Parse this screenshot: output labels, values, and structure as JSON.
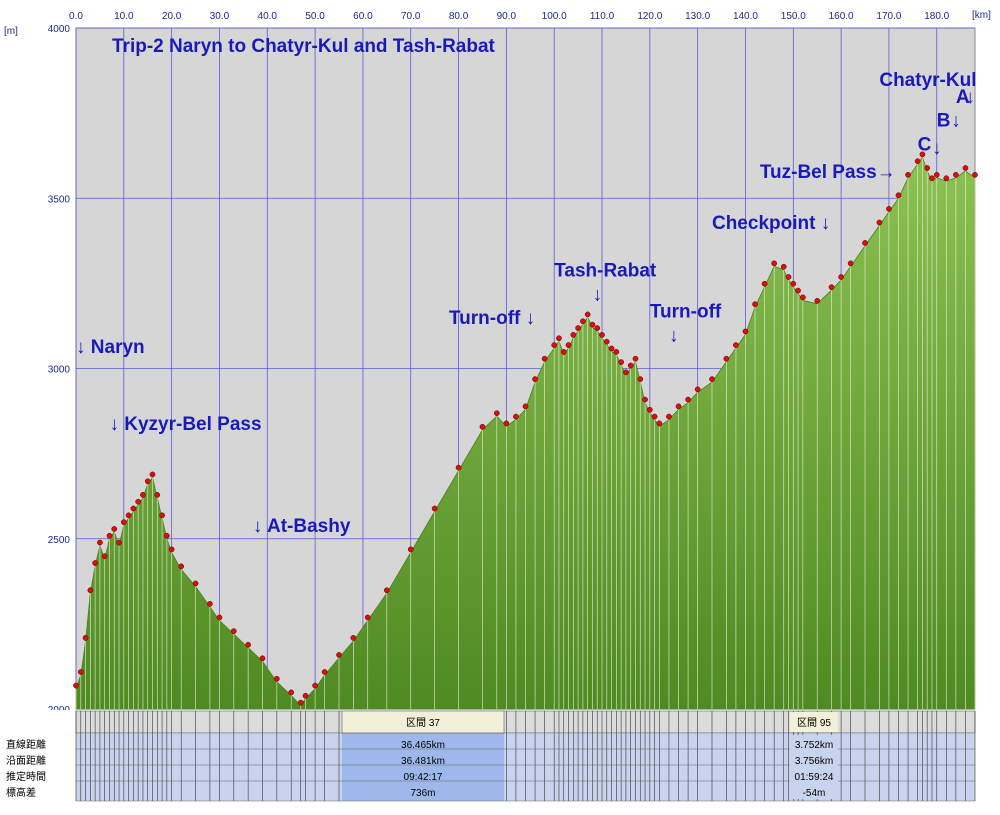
{
  "chart_data": {
    "type": "area",
    "title": "Trip-2 Naryn to Chatyr-Kul and Tash-Rabat",
    "x_unit": "[km]",
    "y_unit": "[m]",
    "xlim": [
      0,
      188
    ],
    "ylim": [
      2000,
      4000
    ],
    "x_ticks": [
      "0.0",
      "10.0",
      "20.0",
      "30.0",
      "40.0",
      "50.0",
      "60.0",
      "70.0",
      "80.0",
      "90.0",
      "100.0",
      "110.0",
      "120.0",
      "130.0",
      "140.0",
      "150.0",
      "160.0",
      "170.0",
      "180.0"
    ],
    "x_tick_values": [
      0,
      10,
      20,
      30,
      40,
      50,
      60,
      70,
      80,
      90,
      100,
      110,
      120,
      130,
      140,
      150,
      160,
      170,
      180
    ],
    "y_ticks": [
      "2000",
      "2500",
      "3000",
      "3500",
      "4000"
    ],
    "y_tick_values": [
      2000,
      2500,
      3000,
      3500,
      4000
    ],
    "grid": true,
    "series": [
      {
        "x": [
          0,
          1,
          2,
          3,
          4,
          5,
          6,
          7,
          8,
          9,
          10,
          11,
          12,
          13,
          14,
          15,
          16,
          17,
          18,
          19,
          20,
          22,
          25,
          28,
          30,
          33,
          36,
          39,
          42,
          45,
          47,
          48,
          50,
          52,
          55,
          58,
          61,
          65,
          70,
          75,
          80,
          85,
          88,
          90,
          92,
          94,
          96,
          98,
          100,
          101,
          102,
          103,
          104,
          105,
          106,
          107,
          108,
          109,
          110,
          111,
          112,
          113,
          114,
          115,
          116,
          117,
          118,
          119,
          120,
          121,
          122,
          124,
          126,
          128,
          130,
          133,
          136,
          138,
          140,
          142,
          144,
          146,
          148,
          149,
          150,
          151,
          152,
          155,
          158,
          160,
          162,
          165,
          168,
          170,
          172,
          174,
          176,
          177,
          178,
          179,
          180,
          182,
          184,
          186,
          188
        ],
        "y": [
          2060,
          2100,
          2200,
          2340,
          2420,
          2480,
          2440,
          2500,
          2520,
          2480,
          2540,
          2560,
          2580,
          2600,
          2620,
          2660,
          2680,
          2620,
          2560,
          2500,
          2460,
          2410,
          2360,
          2300,
          2260,
          2220,
          2180,
          2140,
          2080,
          2040,
          2010,
          2030,
          2060,
          2100,
          2150,
          2200,
          2260,
          2340,
          2460,
          2580,
          2700,
          2820,
          2860,
          2830,
          2850,
          2880,
          2960,
          3020,
          3060,
          3080,
          3040,
          3060,
          3090,
          3110,
          3130,
          3150,
          3120,
          3110,
          3090,
          3070,
          3050,
          3040,
          3010,
          2980,
          3000,
          3020,
          2960,
          2900,
          2870,
          2850,
          2830,
          2850,
          2880,
          2900,
          2930,
          2960,
          3020,
          3060,
          3100,
          3180,
          3240,
          3300,
          3290,
          3260,
          3240,
          3220,
          3200,
          3190,
          3230,
          3260,
          3300,
          3360,
          3420,
          3460,
          3500,
          3560,
          3600,
          3620,
          3580,
          3550,
          3560,
          3550,
          3560,
          3580,
          3560
        ],
        "fill_color": "#6aa534"
      }
    ],
    "annotations": [
      {
        "text": "↓ Naryn",
        "x": 0,
        "y": 3045
      },
      {
        "text": "↓  Kyzyr-Bel Pass",
        "x": 7,
        "y": 2820
      },
      {
        "text": "↓  At-Bashy",
        "x": 37,
        "y": 2520
      },
      {
        "text": "Turn-off ↓",
        "x": 78,
        "y": 3130
      },
      {
        "text": "Tash-Rabat",
        "x": 100,
        "y": 3270
      },
      {
        "text": "↓",
        "x": 108,
        "y": 3200
      },
      {
        "text": "Turn-off",
        "x": 120,
        "y": 3150
      },
      {
        "text": "↓",
        "x": 124,
        "y": 3080
      },
      {
        "text": "Checkpoint ↓",
        "x": 133,
        "y": 3410
      },
      {
        "text": "Tuz-Bel Pass→",
        "x": 143,
        "y": 3560
      },
      {
        "text": "C",
        "x": 176,
        "y": 3640
      },
      {
        "text": "↓",
        "x": 179,
        "y": 3630
      },
      {
        "text": "B",
        "x": 180,
        "y": 3710
      },
      {
        "text": "↓",
        "x": 183,
        "y": 3710
      },
      {
        "text": "A",
        "x": 184,
        "y": 3780
      },
      {
        "text": "↓",
        "x": 186,
        "y": 3780
      },
      {
        "text": "Chatyr-Kul",
        "x": 168,
        "y": 3830
      }
    ],
    "table": {
      "row_labels": [
        "直線距離",
        "沿面距離",
        "推定時間",
        "標高差"
      ],
      "header_cells": [
        "区間 37",
        "区間 95"
      ],
      "highlight_values": [
        "36.465km",
        "36.481km",
        "09:42:17",
        "736m"
      ],
      "secondary_values": [
        "3.752km",
        "3.756km",
        "01:59:24",
        "-54m"
      ]
    },
    "colors": {
      "background": "#d6d6d6",
      "grid": "#5a5ad8",
      "area": "#6aa534",
      "area_top": "#85b94a",
      "marker": "#d81010",
      "table_highlight": "#9fb8ec"
    }
  }
}
